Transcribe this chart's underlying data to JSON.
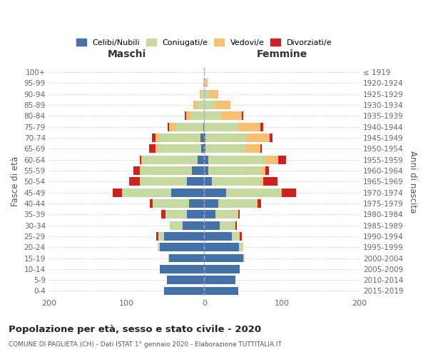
{
  "age_groups": [
    "100+",
    "95-99",
    "90-94",
    "85-89",
    "80-84",
    "75-79",
    "70-74",
    "65-69",
    "60-64",
    "55-59",
    "50-54",
    "45-49",
    "40-44",
    "35-39",
    "30-34",
    "25-29",
    "20-24",
    "15-19",
    "10-14",
    "5-9",
    "0-4"
  ],
  "birth_years": [
    "≤ 1919",
    "1920-1924",
    "1925-1929",
    "1930-1934",
    "1935-1939",
    "1940-1944",
    "1945-1949",
    "1950-1954",
    "1955-1959",
    "1960-1964",
    "1965-1969",
    "1970-1974",
    "1975-1979",
    "1980-1984",
    "1985-1989",
    "1990-1994",
    "1995-1999",
    "2000-2004",
    "2005-2009",
    "2010-2014",
    "2015-2019"
  ],
  "maschi": {
    "celibi": [
      0,
      0,
      0,
      0,
      0,
      1,
      5,
      4,
      9,
      16,
      22,
      43,
      20,
      22,
      28,
      52,
      57,
      45,
      57,
      48,
      52
    ],
    "coniugati": [
      0,
      1,
      4,
      10,
      18,
      36,
      52,
      55,
      70,
      65,
      60,
      62,
      46,
      28,
      16,
      7,
      3,
      1,
      0,
      0,
      0
    ],
    "vedovi": [
      0,
      0,
      2,
      4,
      5,
      8,
      6,
      4,
      2,
      2,
      1,
      1,
      0,
      0,
      0,
      0,
      0,
      0,
      0,
      0,
      0
    ],
    "divorziati": [
      0,
      0,
      0,
      0,
      2,
      2,
      4,
      8,
      2,
      8,
      14,
      12,
      4,
      5,
      0,
      3,
      0,
      0,
      0,
      0,
      0
    ]
  },
  "femmine": {
    "nubili": [
      0,
      0,
      0,
      0,
      0,
      0,
      2,
      2,
      5,
      5,
      10,
      28,
      18,
      14,
      20,
      36,
      45,
      50,
      46,
      40,
      44
    ],
    "coniugate": [
      0,
      2,
      6,
      14,
      22,
      44,
      52,
      50,
      74,
      68,
      62,
      70,
      50,
      30,
      20,
      10,
      5,
      2,
      0,
      0,
      0
    ],
    "vedove": [
      1,
      2,
      12,
      20,
      26,
      28,
      30,
      20,
      16,
      6,
      4,
      2,
      1,
      0,
      0,
      0,
      0,
      0,
      0,
      0,
      0
    ],
    "divorziate": [
      0,
      0,
      0,
      0,
      2,
      4,
      4,
      2,
      10,
      4,
      18,
      18,
      4,
      2,
      2,
      2,
      0,
      0,
      0,
      0,
      0
    ]
  },
  "colors": {
    "celibi": "#4472a8",
    "coniugati": "#c5d9a0",
    "vedovi": "#f5c072",
    "divorziati": "#cc2222"
  },
  "legend_labels": [
    "Celibi/Nubili",
    "Coniugati/e",
    "Vedovi/e",
    "Divorziati/e"
  ],
  "title": "Popolazione per età, sesso e stato civile - 2020",
  "subtitle": "COMUNE DI PAGLIETA (CH) - Dati ISTAT 1° gennaio 2020 - Elaborazione TUTTITALIA.IT",
  "xlabel_left": "Maschi",
  "xlabel_right": "Femmine",
  "ylabel_left": "Fasce di età",
  "ylabel_right": "Anni di nascita",
  "xlim": 200,
  "background_color": "#ffffff",
  "grid_color": "#cccccc"
}
